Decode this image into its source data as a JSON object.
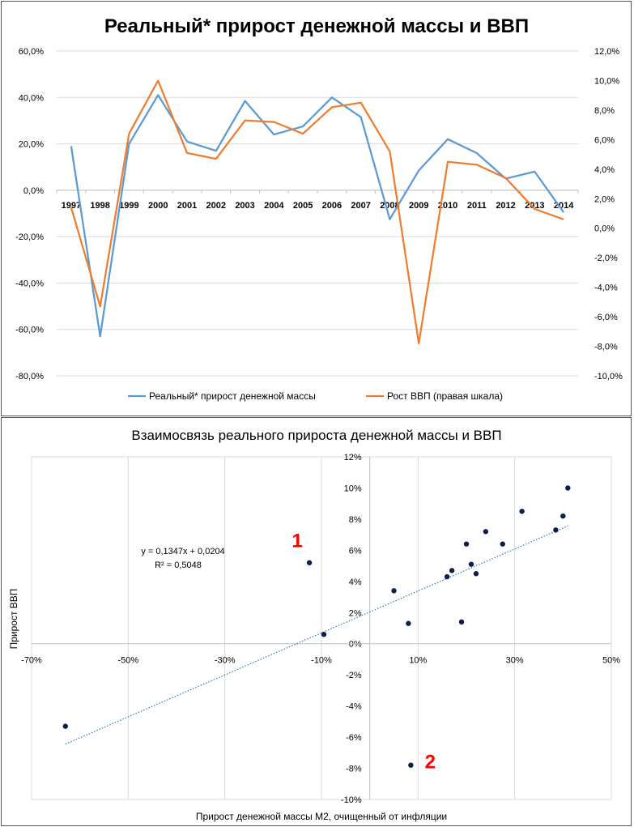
{
  "chart_data": [
    {
      "type": "line",
      "title": "Реальный* прирост денежной массы и ВВП",
      "x": [
        "1997",
        "1998",
        "1999",
        "2000",
        "2001",
        "2002",
        "2003",
        "2004",
        "2005",
        "2006",
        "2007",
        "2008",
        "2009",
        "2010",
        "2011",
        "2012",
        "2013",
        "2014"
      ],
      "y_left_ticks": [
        "60,0%",
        "40,0%",
        "20,0%",
        "0,0%",
        "-20,0%",
        "-40,0%",
        "-60,0%",
        "-80,0%"
      ],
      "y_right_ticks": [
        "12,0%",
        "10,0%",
        "8,0%",
        "6,0%",
        "4,0%",
        "2,0%",
        "0,0%",
        "-2,0%",
        "-4,0%",
        "-6,0%",
        "-8,0%",
        "-10,0%"
      ],
      "ylim_left": [
        -80,
        60
      ],
      "ylim_right": [
        -10,
        12
      ],
      "grid": true,
      "legend_position": "bottom",
      "series": [
        {
          "name": "Реальный* прирост денежной массы",
          "axis": "left",
          "color": "#5b9bd5",
          "values": [
            19,
            -63,
            20,
            41,
            21,
            17,
            38.5,
            24,
            27.5,
            40,
            31.5,
            -12.5,
            8.5,
            22,
            16,
            5,
            8,
            -9.5
          ]
        },
        {
          "name": "Рост ВВП (правая шкала)",
          "axis": "right",
          "color": "#ed7d31",
          "values": [
            1.4,
            -5.3,
            6.4,
            10.0,
            5.1,
            4.7,
            7.3,
            7.2,
            6.4,
            8.2,
            8.5,
            5.2,
            -7.8,
            4.5,
            4.3,
            3.4,
            1.3,
            0.6
          ]
        }
      ]
    },
    {
      "type": "scatter",
      "title": "Взаимосвязь реального прироста денежной массы и ВВП",
      "xlabel": "Прирост денежной массы М2, очищенный от инфляции",
      "ylabel": "Прирост ВВП",
      "xlim": [
        -70,
        50
      ],
      "ylim": [
        -10,
        12
      ],
      "x_ticks": [
        "-70%",
        "-50%",
        "-30%",
        "-10%",
        "10%",
        "30%",
        "50%"
      ],
      "y_ticks": [
        "12%",
        "10%",
        "8%",
        "6%",
        "4%",
        "2%",
        "0%",
        "-2%",
        "-4%",
        "-6%",
        "-8%",
        "-10%"
      ],
      "grid": true,
      "trendline": {
        "equation": "y = 0,1347x + 0,0204",
        "r2": "R² = 0,5048",
        "slope": 0.1347,
        "intercept": 2.04,
        "x_from": -63,
        "x_to": 41,
        "color": "#2e75b6"
      },
      "point_color": "#0d1f4c",
      "points": [
        [
          19,
          1.4
        ],
        [
          -63,
          -5.3
        ],
        [
          20,
          6.4
        ],
        [
          41,
          10.0
        ],
        [
          21,
          5.1
        ],
        [
          17,
          4.7
        ],
        [
          38.5,
          7.3
        ],
        [
          24,
          7.2
        ],
        [
          27.5,
          6.4
        ],
        [
          40,
          8.2
        ],
        [
          31.5,
          8.5
        ],
        [
          -12.5,
          5.2
        ],
        [
          8.5,
          -7.8
        ],
        [
          22,
          4.5
        ],
        [
          16,
          4.3
        ],
        [
          5,
          3.4
        ],
        [
          8,
          1.3
        ],
        [
          -9.5,
          0.6
        ]
      ],
      "annotations": [
        {
          "label": "1",
          "x": -15,
          "y": 6.2,
          "color": "#ff0000"
        },
        {
          "label": "2",
          "x": 12.5,
          "y": -8.0,
          "color": "#ff0000"
        }
      ]
    }
  ]
}
